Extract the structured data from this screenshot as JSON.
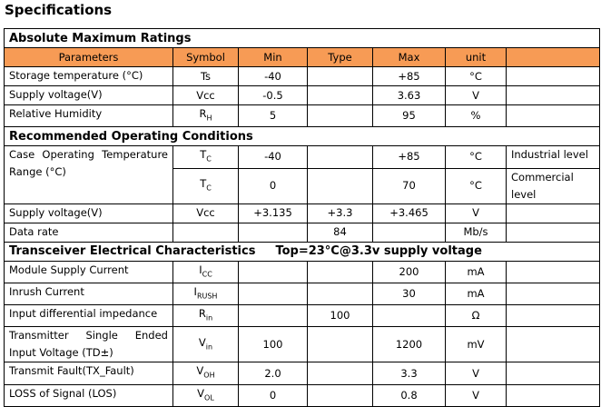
{
  "title": "Specifications",
  "columns": [
    "Parameters",
    "Symbol",
    "Min",
    "Type",
    "Max",
    "unit"
  ],
  "sections": [
    {
      "title": "Absolute Maximum Ratings",
      "show_header": true,
      "rows": [
        {
          "parameter": "Storage temperature (°C)",
          "symbol": "Ts",
          "min": "-40",
          "max": "+85",
          "unit": "°C"
        },
        {
          "parameter": "Supply voltage(V)",
          "symbol": "Vcc",
          "min": "-0.5",
          "max": "3.63",
          "unit": "V"
        },
        {
          "parameter": "Relative Humidity",
          "symbol": {
            "main": "R",
            "sub": "H"
          },
          "min": "5",
          "max": "95",
          "unit": "%"
        }
      ]
    },
    {
      "title": "Recommended Operating Conditions",
      "rows": [
        {
          "parameter": "Case Operating Temperature Range (°C)",
          "span": 2,
          "symbol": {
            "main": "T",
            "sub": "C"
          },
          "min": "-40",
          "max": "+85",
          "unit": "°C",
          "note": "Industrial level"
        },
        {
          "symbol": {
            "main": "T",
            "sub": "C"
          },
          "min": "0",
          "max": "70",
          "unit": "°C",
          "note": "Commercial level"
        },
        {
          "parameter": "Supply voltage(V)",
          "symbol": "Vcc",
          "min": "+3.135",
          "type": "+3.3",
          "max": "+3.465",
          "unit": "V"
        },
        {
          "parameter": "Data rate",
          "type": "84",
          "unit": "Mb/s"
        }
      ]
    },
    {
      "title": "Transceiver Electrical Characteristics",
      "condition": "Top=23°C@3.3v supply voltage",
      "rows": [
        {
          "parameter": "Module Supply Current",
          "symbol": {
            "main": "I",
            "sub": "CC"
          },
          "max": "200",
          "unit": "mA"
        },
        {
          "parameter": "Inrush Current",
          "symbol": {
            "main": "I",
            "sub": "RUSH"
          },
          "max": "30",
          "unit": "mA"
        },
        {
          "parameter": "Input differential impedance",
          "symbol": {
            "main": "R",
            "sub": "in"
          },
          "type": "100",
          "unit": "Ω"
        },
        {
          "parameter": "Transmitter Single Ended Input Voltage (TD±)",
          "symbol": {
            "main": "V",
            "sub": "in"
          },
          "min": "100",
          "max": "1200",
          "unit": "mV"
        },
        {
          "parameter": "Transmit Fault(TX_Fault)",
          "symbol": {
            "main": "V",
            "sub": "OH"
          },
          "min": "2.0",
          "max": "3.3",
          "unit": "V"
        },
        {
          "parameter": "LOSS of Signal (LOS)",
          "symbol": {
            "main": "V",
            "sub": "OL"
          },
          "min": "0",
          "max": "0.8",
          "unit": "V"
        }
      ]
    }
  ]
}
